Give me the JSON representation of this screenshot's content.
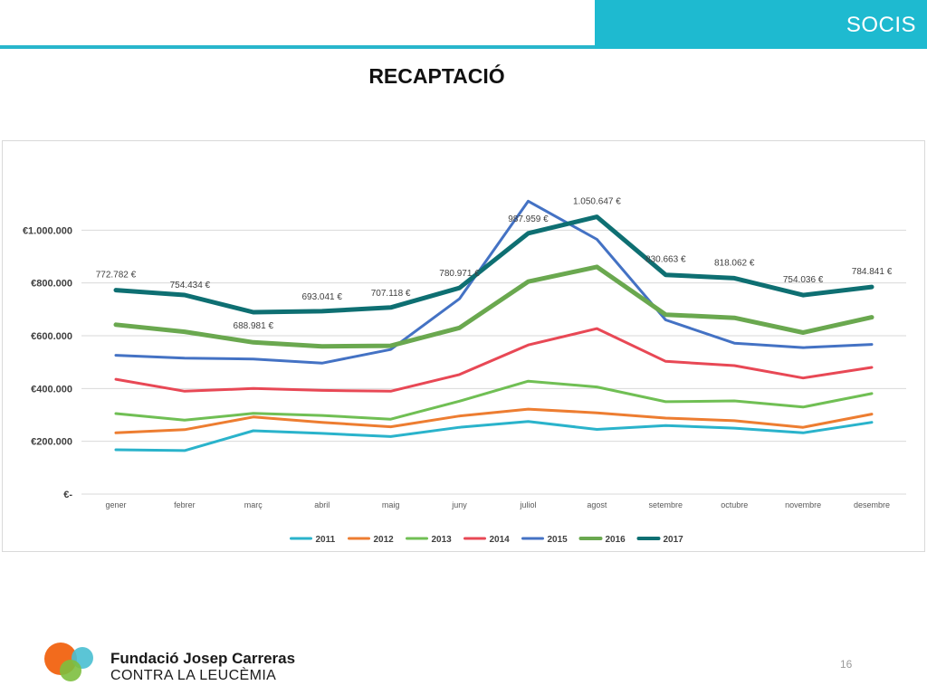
{
  "header": {
    "tab_label": "SOCIS",
    "accent_color": "#1ebad0"
  },
  "slide": {
    "title": "RECAPTACIÓ",
    "page_number": "16"
  },
  "footer": {
    "org_name": "Fundació Josep Carreras",
    "org_subtitle": "CONTRA LA LEUCÈMIA",
    "logo_icon": "overlapping-circles-logo-icon"
  },
  "chart_data": {
    "type": "line",
    "title": "",
    "xlabel": "",
    "ylabel": "",
    "categories": [
      "gener",
      "febrer",
      "març",
      "abril",
      "maig",
      "juny",
      "juliol",
      "agost",
      "setembre",
      "octubre",
      "novembre",
      "desembre"
    ],
    "ylim": [
      0,
      1200000
    ],
    "yticks": [
      0,
      200000,
      400000,
      600000,
      800000,
      1000000
    ],
    "ytick_labels": [
      "€-",
      "€200.000",
      "€400.000",
      "€600.000",
      "€800.000",
      "€1.000.000"
    ],
    "grid": true,
    "legend_position": "bottom",
    "series": [
      {
        "name": "2011",
        "color": "#2ab3cb",
        "width": 3,
        "values": [
          168000,
          165000,
          240000,
          230000,
          218000,
          253000,
          275000,
          245000,
          260000,
          250000,
          232000,
          272000
        ]
      },
      {
        "name": "2012",
        "color": "#ed7d31",
        "width": 3,
        "values": [
          232000,
          244000,
          292000,
          272000,
          255000,
          296000,
          322000,
          308000,
          288000,
          278000,
          253000,
          303000
        ]
      },
      {
        "name": "2013",
        "color": "#70bf54",
        "width": 3,
        "values": [
          305000,
          280000,
          306000,
          298000,
          284000,
          352000,
          428000,
          406000,
          350000,
          353000,
          330000,
          381000
        ]
      },
      {
        "name": "2014",
        "color": "#e84855",
        "width": 3,
        "values": [
          435000,
          390000,
          400000,
          393000,
          390000,
          453000,
          565000,
          627000,
          503000,
          487000,
          440000,
          480000
        ]
      },
      {
        "name": "2015",
        "color": "#4472c4",
        "width": 3,
        "values": [
          526000,
          515000,
          512000,
          496000,
          548000,
          740000,
          1110000,
          965000,
          660000,
          572000,
          555000,
          567000
        ]
      },
      {
        "name": "2016",
        "color": "#6aa84f",
        "width": 5,
        "values": [
          642000,
          615000,
          575000,
          560000,
          562000,
          630000,
          805000,
          861000,
          680000,
          668000,
          612000,
          670000
        ]
      },
      {
        "name": "2017",
        "color": "#0e6f72",
        "width": 5,
        "values": [
          772782,
          754434,
          688981,
          693041,
          707118,
          780971,
          987959,
          1050647,
          830663,
          818062,
          754036,
          784841
        ],
        "data_labels": [
          "772.782 €",
          "754.434 €",
          "688.981 €",
          "693.041 €",
          "707.118 €",
          "780.971 €",
          "987.959 €",
          "1.050.647 €",
          "830.663 €",
          "818.062 €",
          "754.036 €",
          "784.841 €"
        ]
      }
    ]
  }
}
